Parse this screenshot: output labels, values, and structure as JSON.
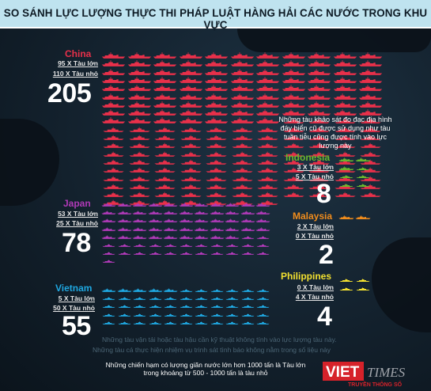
{
  "title": "SO SÁNH LỰC LƯỢNG THỰC THI PHÁP LUẬT HÀNG HẢI CÁC NƯỚC TRONG KHU VỰC",
  "countries": {
    "china": {
      "name": "China",
      "large_line": "95 X Tàu lớn",
      "small_line": "110 X Tàu nhỏ",
      "total": "205",
      "color": "#e8304a",
      "large": 95,
      "small": 110
    },
    "japan": {
      "name": "Japan",
      "large_line": "53 X Tàu lớn",
      "small_line": "25 X Tàu nhỏ",
      "total": "78",
      "color": "#b03ab8",
      "large": 53,
      "small": 25
    },
    "vietnam": {
      "name": "Vietnam",
      "large_line": "5 X Tàu lớn",
      "small_line": "50 X Tàu nhỏ",
      "total": "55",
      "color": "#1fa7e0",
      "large": 5,
      "small": 50
    },
    "indonesia": {
      "name": "Indonesia",
      "large_line": "3 X Tàu lớn",
      "small_line": "5 X Tàu nhỏ",
      "total": "8",
      "color": "#69b82e",
      "large": 3,
      "small": 5
    },
    "malaysia": {
      "name": "Malaysia",
      "large_line": "2 X Tàu lớn",
      "small_line": "0 X Tàu nhỏ",
      "total": "2",
      "color": "#f08c1c",
      "large": 2,
      "small": 0
    },
    "philippines": {
      "name": "Philippines",
      "large_line": "0 X Tàu lớn",
      "small_line": "4 X Tàu nhỏ",
      "total": "4",
      "color": "#f2e030",
      "large": 0,
      "small": 4
    }
  },
  "notes": {
    "indonesia_note": "Những tàu khảo sát đo đạc địa hình đáy biển cũ được sử dụng như tàu tuần tiễu cũng được tính vào lực lượng này"
  },
  "footnotes": [
    "Những tàu vận tải hoặc tàu hậu cần kỹ thuật không tính vào lực lượng tàu này.",
    "Những tàu cá thực hiện nhiệm vụ trinh sát tình báo không nằm trong số liệu này"
  ],
  "legend": {
    "line1": "Những chiến hạm có lượng giãn nước lớn hơn 1000 tấn là Tàu lớn",
    "line2": "trong khoảng từ 500 - 1000 tấn là tàu nhỏ"
  },
  "logo": {
    "viet": "VIET",
    "times": "TIMES",
    "sub": "TRUYỀN THÔNG SỐ"
  },
  "icons": {
    "large_ship": "large-ship-icon",
    "small_ship": "small-ship-icon"
  }
}
